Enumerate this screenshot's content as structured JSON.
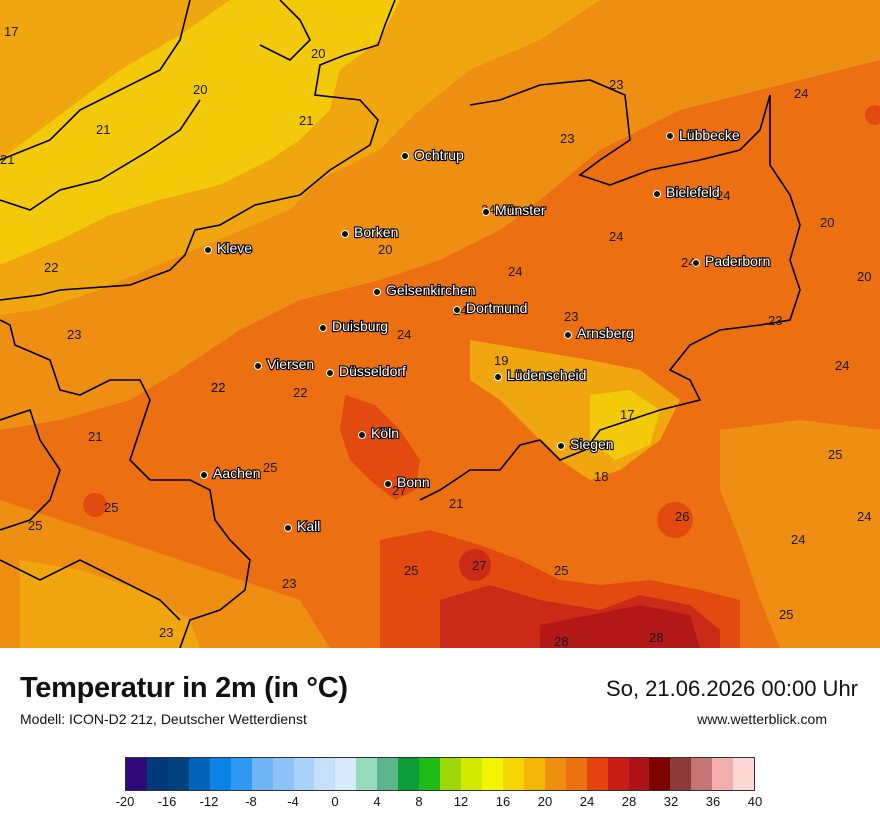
{
  "title": "Temperatur in 2m (in °C)",
  "model": "Modell: ICON-D2 21z, Deutscher Wetterdienst",
  "datetime": "So, 21.06.2026 00:00 Uhr",
  "website": "www.wetterblick.com",
  "colors": {
    "zone17": "#f3ca0a",
    "zone20": "#f0a60f",
    "zone22": "#ee8f13",
    "zone24": "#ec7011",
    "zone26": "#e34a10",
    "zone28": "#cc2a18",
    "zone30": "#b21818",
    "border_line": "#000000"
  },
  "scale": {
    "colors": [
      "#2e0a7a",
      "#003a7c",
      "#00417e",
      "#0062b8",
      "#0a84e6",
      "#2f99f4",
      "#6fb5f6",
      "#8cc3f8",
      "#a9d2fa",
      "#c6e0fb",
      "#d9eafd",
      "#97dbbf",
      "#5cb58c",
      "#0e9c3a",
      "#1fba14",
      "#9ed80a",
      "#d3ea00",
      "#f2f400",
      "#f3d603",
      "#f3b607",
      "#ee8f10",
      "#ec730f",
      "#e64310",
      "#c81d18",
      "#ad1218",
      "#7c0000",
      "#8c3a3a",
      "#c57574",
      "#f2aeac",
      "#fdd6d6"
    ],
    "labels": [
      "-20",
      "-16",
      "-12",
      "-8",
      "-4",
      "0",
      "4",
      "8",
      "12",
      "16",
      "20",
      "24",
      "28",
      "32",
      "36",
      "40"
    ]
  },
  "cities": [
    {
      "name": "Ochtrup"
    },
    {
      "name": "Lübbecke"
    },
    {
      "name": "Bielefeld"
    },
    {
      "name": "Münster"
    },
    {
      "name": "Borken"
    },
    {
      "name": "Kleve"
    },
    {
      "name": "Paderborn"
    },
    {
      "name": "Gelsenkirchen"
    },
    {
      "name": "Dortmund"
    },
    {
      "name": "Duisburg"
    },
    {
      "name": "Arnsberg"
    },
    {
      "name": "Viersen"
    },
    {
      "name": "Düsseldorf"
    },
    {
      "name": "Lüdenscheid"
    },
    {
      "name": "Köln"
    },
    {
      "name": "Siegen"
    },
    {
      "name": "Aachen"
    },
    {
      "name": "Bonn"
    },
    {
      "name": "Kall"
    }
  ],
  "temps": [
    "17",
    "20",
    "20",
    "21",
    "21",
    "21",
    "22",
    "22",
    "23",
    "20",
    "23",
    "23",
    "24",
    "24",
    "24",
    "24",
    "20",
    "24",
    "24",
    "24",
    "20",
    "23",
    "23",
    "24",
    "19",
    "24",
    "22",
    "22",
    "21",
    "17",
    "25",
    "25",
    "18",
    "25",
    "25",
    "21",
    "26",
    "24",
    "24",
    "23",
    "25",
    "27",
    "25",
    "23",
    "28",
    "28",
    "25",
    "27"
  ]
}
